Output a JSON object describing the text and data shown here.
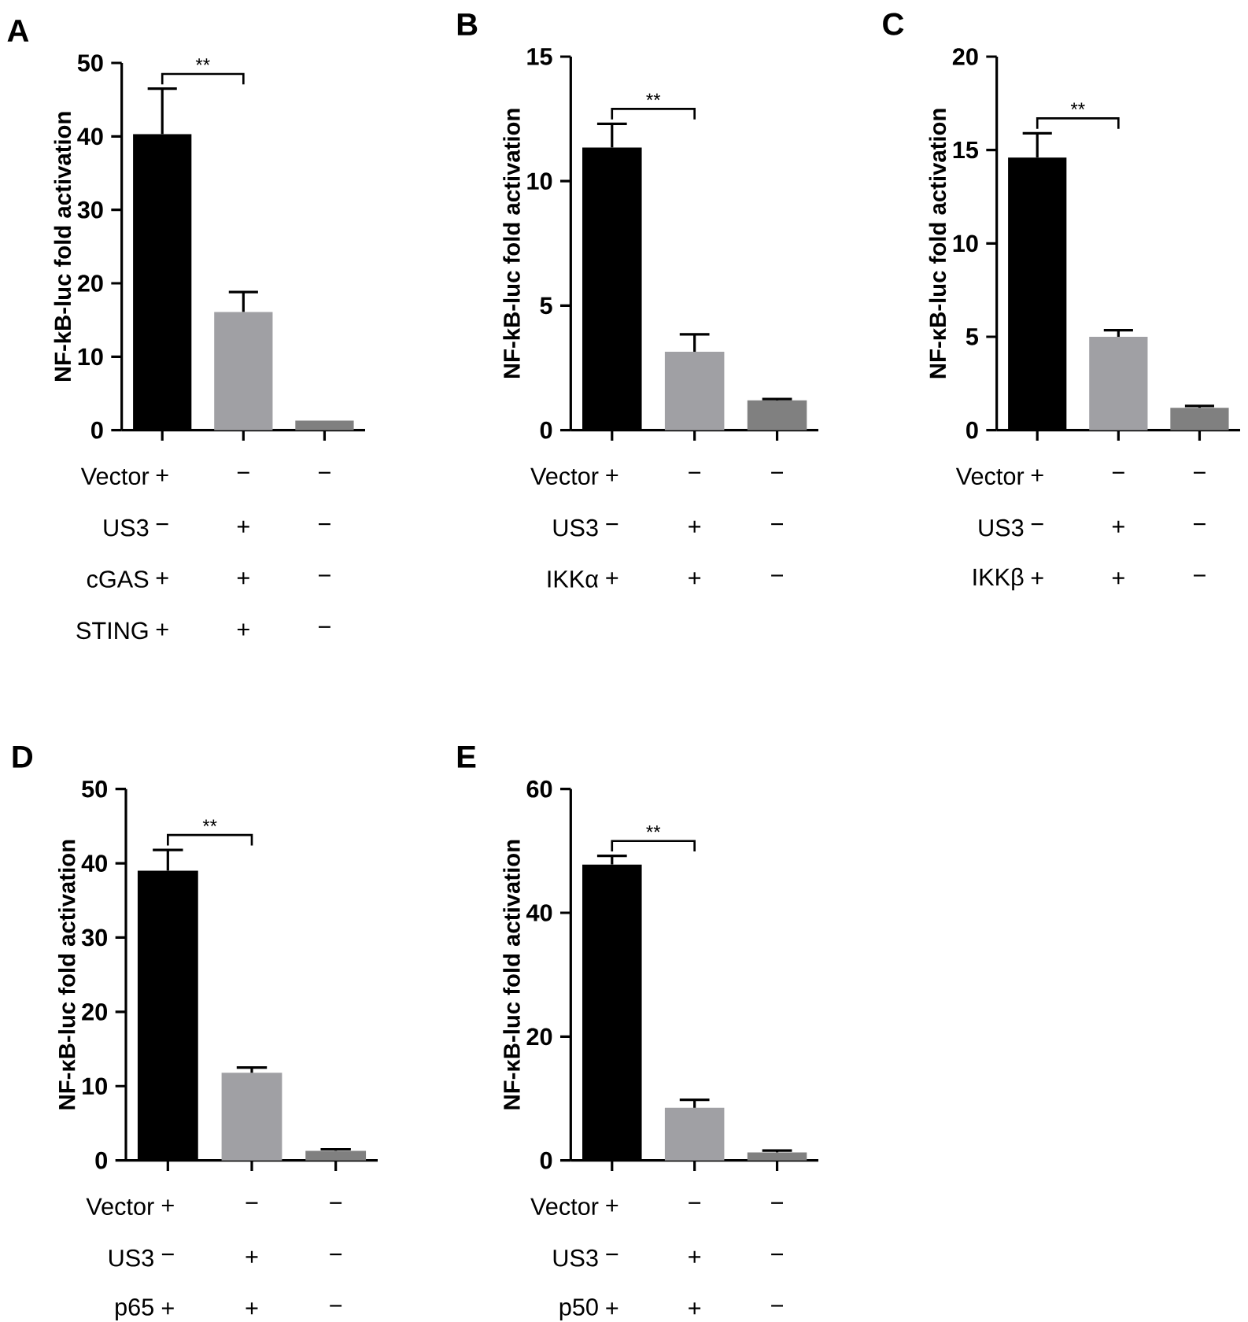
{
  "chart_data": [
    {
      "type": "bar",
      "title": "A",
      "ylabel": "NF-kB-luc fold activation",
      "categories": [
        null,
        null,
        null
      ],
      "values": [
        40.3,
        16.1,
        1.3
      ],
      "colors": [
        "#000000",
        "#a0a0a4",
        "#808080"
      ],
      "errors": [
        [
          40.3,
          46.5
        ],
        [
          16.1,
          18.8
        ],
        null
      ],
      "ylim": [
        0,
        50
      ],
      "yticks": [
        0,
        10,
        20,
        30,
        40,
        50
      ],
      "annotations": [
        "**",
        "Vector",
        "+",
        "−",
        "−",
        "US3",
        "−",
        "+",
        "−",
        "cGAS",
        "+",
        "+",
        "−",
        "STING",
        "+",
        "+",
        "−"
      ]
    },
    {
      "type": "bar",
      "title": "B",
      "ylabel": "NF-kB-luc fold activation",
      "categories": [
        null,
        null,
        null
      ],
      "values": [
        11.35,
        3.15,
        1.2
      ],
      "colors": [
        "#000000",
        "#a0a0a4",
        "#808080"
      ],
      "errors": [
        [
          11.35,
          12.3
        ],
        [
          3.15,
          3.85
        ],
        [
          1.2,
          1.25
        ]
      ],
      "ylim": [
        0,
        15
      ],
      "yticks": [
        0,
        5,
        10,
        15
      ],
      "annotations": [
        "**",
        "Vector",
        "+",
        "−",
        "−",
        "US3",
        "−",
        "+",
        "−",
        "IKKα",
        "+",
        "+",
        "−"
      ]
    },
    {
      "type": "bar",
      "title": "C",
      "ylabel": "NF-κB-luc fold activation",
      "categories": [
        null,
        null,
        null
      ],
      "values": [
        14.6,
        5.0,
        1.2
      ],
      "colors": [
        "#000000",
        "#a0a0a4",
        "#808080"
      ],
      "errors": [
        [
          14.6,
          15.9
        ],
        [
          5.0,
          5.35
        ],
        [
          1.2,
          1.3
        ]
      ],
      "ylim": [
        0,
        20
      ],
      "yticks": [
        0,
        5,
        10,
        15,
        20
      ],
      "annotations": [
        "**",
        "Vector",
        "+",
        "−",
        "−",
        "US3",
        "−",
        "+",
        "−",
        "IKKβ",
        "+",
        "+",
        "−"
      ]
    },
    {
      "type": "bar",
      "title": "D",
      "ylabel": "NF-κB-luc fold activation",
      "categories": [
        null,
        null,
        null
      ],
      "values": [
        39.0,
        11.8,
        1.3
      ],
      "colors": [
        "#000000",
        "#a0a0a4",
        "#808080"
      ],
      "errors": [
        [
          39.0,
          41.8
        ],
        [
          11.8,
          12.5
        ],
        [
          1.3,
          1.5
        ]
      ],
      "ylim": [
        0,
        50
      ],
      "yticks": [
        0,
        10,
        20,
        30,
        40,
        50
      ],
      "annotations": [
        "**",
        "Vector",
        "+",
        "−",
        "−",
        "US3",
        "−",
        "+",
        "−",
        "p65",
        "+",
        "+",
        "−"
      ]
    },
    {
      "type": "bar",
      "title": "E",
      "ylabel": "NF-κB-luc fold activation",
      "categories": [
        null,
        null,
        null
      ],
      "values": [
        47.8,
        8.5,
        1.3
      ],
      "colors": [
        "#000000",
        "#a0a0a4",
        "#808080"
      ],
      "errors": [
        [
          47.8,
          49.2
        ],
        [
          8.5,
          9.8
        ],
        [
          1.3,
          1.6
        ]
      ],
      "ylim": [
        0,
        60
      ],
      "yticks": [
        0,
        20,
        40,
        60
      ],
      "annotations": [
        "**",
        "Vector",
        "+",
        "−",
        "−",
        "US3",
        "−",
        "+",
        "−",
        "p50",
        "+",
        "+",
        "−"
      ]
    }
  ]
}
